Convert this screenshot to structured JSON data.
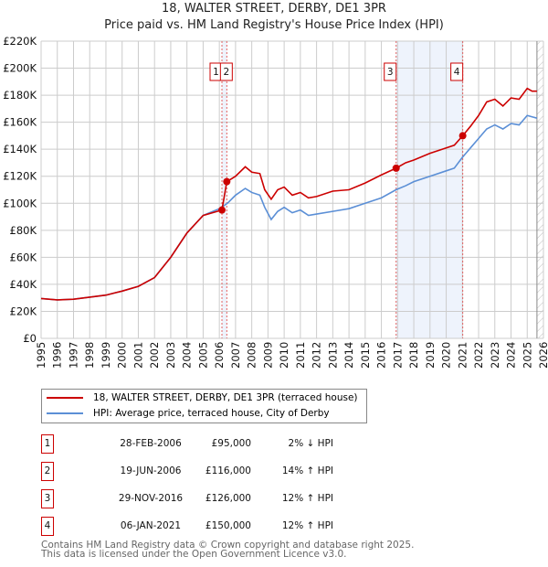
{
  "chart_data": {
    "type": "line",
    "title": "18, WALTER STREET, DERBY, DE1 3PR",
    "subtitle": "Price paid vs. HM Land Registry's House Price Index (HPI)",
    "xlim": [
      1995,
      2026
    ],
    "ylim": [
      0,
      220000
    ],
    "yticks": [
      0,
      20000,
      40000,
      60000,
      80000,
      100000,
      120000,
      140000,
      160000,
      180000,
      200000,
      220000
    ],
    "ytick_labels": [
      "£0",
      "£20K",
      "£40K",
      "£60K",
      "£80K",
      "£100K",
      "£120K",
      "£140K",
      "£160K",
      "£180K",
      "£200K",
      "£220K"
    ],
    "xticks": [
      1995,
      1996,
      1997,
      1998,
      1999,
      2000,
      2001,
      2002,
      2003,
      2004,
      2005,
      2006,
      2007,
      2008,
      2009,
      2010,
      2011,
      2012,
      2013,
      2014,
      2015,
      2016,
      2017,
      2018,
      2019,
      2020,
      2021,
      2022,
      2023,
      2024,
      2025,
      2026
    ],
    "grid": true,
    "series": [
      {
        "name": "18, WALTER STREET, DERBY, DE1 3PR (terraced house)",
        "color": "#cc0000",
        "x": [
          1995,
          1996,
          1997,
          1998,
          1999,
          2000,
          2001,
          2002,
          2003,
          2004,
          2005,
          2006.16,
          2006.46,
          2007,
          2007.6,
          2008,
          2008.5,
          2008.8,
          2009.2,
          2009.6,
          2010,
          2010.5,
          2011,
          2011.5,
          2012,
          2013,
          2014,
          2015,
          2016,
          2016.91,
          2017.5,
          2018,
          2019,
          2020,
          2020.5,
          2021.02,
          2021.5,
          2022,
          2022.5,
          2023,
          2023.5,
          2024,
          2024.5,
          2025,
          2025.3,
          2025.6
        ],
        "y": [
          29500,
          28500,
          29000,
          30500,
          32000,
          35000,
          38500,
          45000,
          60000,
          78000,
          91000,
          95000,
          116000,
          120000,
          127000,
          123000,
          122000,
          110000,
          103000,
          110000,
          112000,
          106000,
          108000,
          104000,
          105000,
          109000,
          110000,
          115000,
          121000,
          126000,
          130000,
          132000,
          137000,
          141000,
          143000,
          150000,
          157000,
          165000,
          175000,
          177000,
          172000,
          178000,
          177000,
          185000,
          183000,
          183000
        ]
      },
      {
        "name": "HPI: Average price, terraced house, City of Derby",
        "color": "#5b8fd6",
        "x": [
          1995,
          1996,
          1997,
          1998,
          1999,
          2000,
          2001,
          2002,
          2003,
          2004,
          2005,
          2006,
          2006.5,
          2007,
          2007.6,
          2008,
          2008.5,
          2008.8,
          2009.2,
          2009.6,
          2010,
          2010.5,
          2011,
          2011.5,
          2012,
          2013,
          2014,
          2015,
          2016,
          2016.9,
          2017.5,
          2018,
          2019,
          2020,
          2020.5,
          2021,
          2021.5,
          2022,
          2022.5,
          2023,
          2023.5,
          2024,
          2024.5,
          2025,
          2025.3,
          2025.6
        ],
        "y": [
          29500,
          28500,
          29000,
          30500,
          32000,
          35000,
          38500,
          45000,
          60000,
          78000,
          91000,
          96000,
          100000,
          106000,
          111000,
          108000,
          106000,
          97000,
          88000,
          94000,
          97000,
          93000,
          95000,
          91000,
          92000,
          94000,
          96000,
          100000,
          104000,
          110000,
          113000,
          116000,
          120000,
          124000,
          126000,
          134000,
          141000,
          148000,
          155000,
          158000,
          155000,
          159000,
          158000,
          165000,
          164000,
          163000
        ]
      }
    ],
    "sales": [
      {
        "label": "1",
        "x": 2006.16,
        "y": 95000,
        "date": "28-FEB-2006",
        "price": "£95,000",
        "hpi": "2% ↓ HPI"
      },
      {
        "label": "2",
        "x": 2006.46,
        "y": 116000,
        "date": "19-JUN-2006",
        "price": "£116,000",
        "hpi": "14% ↑ HPI"
      },
      {
        "label": "3",
        "x": 2016.91,
        "y": 126000,
        "date": "29-NOV-2016",
        "price": "£126,000",
        "hpi": "12% ↑ HPI"
      },
      {
        "label": "4",
        "x": 2021.02,
        "y": 150000,
        "date": "06-JAN-2021",
        "price": "£150,000",
        "hpi": "12% ↑ HPI"
      }
    ],
    "shaded": [
      [
        2006.16,
        2006.46
      ],
      [
        2016.91,
        2021.02
      ]
    ],
    "forecast_from": 2025.6
  },
  "footer": {
    "line1": "Contains HM Land Registry data © Crown copyright and database right 2025.",
    "line2": "This data is licensed under the Open Government Licence v3.0."
  }
}
